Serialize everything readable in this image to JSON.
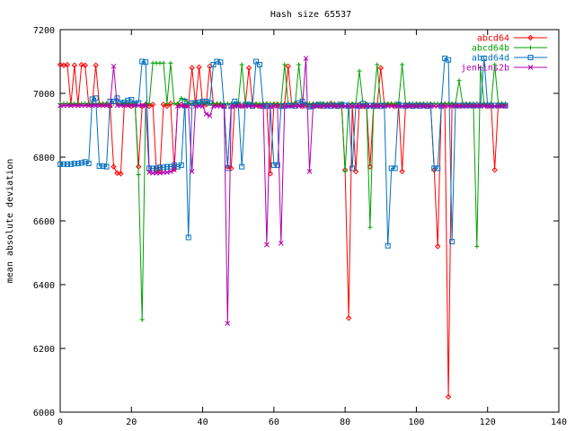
{
  "chart_data": {
    "type": "line",
    "title": "Hash size 65537",
    "xlabel": "",
    "ylabel": "mean absolute deviation",
    "xlim": [
      0,
      140
    ],
    "ylim": [
      6000,
      7200
    ],
    "xticks": [
      0,
      20,
      40,
      60,
      80,
      100,
      120,
      140
    ],
    "yticks": [
      6000,
      6200,
      6400,
      6600,
      6800,
      7000,
      7200
    ],
    "grid": false,
    "legend_position": "top-right",
    "series": [
      {
        "name": "abcd64",
        "color": "#ff0000",
        "marker": "diamond",
        "x": [
          0,
          1,
          2,
          3,
          4,
          5,
          6,
          7,
          8,
          9,
          10,
          11,
          12,
          13,
          14,
          15,
          16,
          17,
          18,
          19,
          20,
          21,
          22,
          23,
          24,
          25,
          26,
          27,
          28,
          29,
          30,
          31,
          32,
          33,
          34,
          35,
          36,
          37,
          38,
          39,
          40,
          41,
          42,
          43,
          44,
          45,
          46,
          47,
          48,
          49,
          50,
          51,
          52,
          53,
          54,
          55,
          56,
          57,
          58,
          59,
          60,
          61,
          62,
          63,
          64,
          65,
          66,
          67,
          68,
          69,
          70,
          71,
          72,
          73,
          74,
          75,
          76,
          77,
          78,
          79,
          80,
          81,
          82,
          83,
          84,
          85,
          86,
          87,
          88,
          89,
          90,
          91,
          92,
          93,
          94,
          95,
          96,
          97,
          98,
          99,
          100,
          101,
          102,
          103,
          104,
          105,
          106,
          107,
          108,
          109,
          110,
          111,
          112,
          113,
          114,
          115,
          116,
          117,
          118,
          119,
          120,
          121,
          122,
          123,
          124,
          125
        ],
        "values": [
          7090,
          7088,
          7090,
          6965,
          7088,
          6965,
          7090,
          7088,
          6965,
          6965,
          7088,
          6965,
          6965,
          6965,
          6960,
          6770,
          6750,
          6748,
          6965,
          6965,
          6960,
          6965,
          6770,
          6960,
          6965,
          6960,
          6965,
          6760,
          6755,
          6965,
          6960,
          6968,
          6762,
          6965,
          6965,
          6960,
          6965,
          7080,
          6965,
          7082,
          6965,
          6965,
          7085,
          6965,
          6965,
          6965,
          6960,
          6770,
          6765,
          6965,
          6965,
          6960,
          6965,
          7080,
          6965,
          6965,
          6960,
          6965,
          6965,
          6748,
          6965,
          6965,
          6962,
          6965,
          7085,
          6965,
          6968,
          6965,
          6960,
          6965,
          6962,
          6965,
          6965,
          6960,
          6965,
          6965,
          6968,
          6965,
          6960,
          6965,
          6760,
          6295,
          6965,
          6755,
          6965,
          6960,
          6965,
          6770,
          6965,
          6960,
          7080,
          6965,
          6965,
          6965,
          6960,
          6965,
          6755,
          6965,
          6965,
          6960,
          6965,
          6965,
          6965,
          6960,
          6965,
          6760,
          6520,
          6965,
          6965,
          6048,
          6965,
          6965,
          6960,
          6965,
          6965,
          6965,
          6960,
          6965,
          6965,
          6965,
          6960,
          6965,
          6760,
          6965,
          6965,
          6960
        ]
      },
      {
        "name": "abcd64b",
        "color": "#00a000",
        "marker": "plus",
        "x": [
          0,
          1,
          2,
          3,
          4,
          5,
          6,
          7,
          8,
          9,
          10,
          11,
          12,
          13,
          14,
          15,
          16,
          17,
          18,
          19,
          20,
          21,
          22,
          23,
          24,
          25,
          26,
          27,
          28,
          29,
          30,
          31,
          32,
          33,
          34,
          35,
          36,
          37,
          38,
          39,
          40,
          41,
          42,
          43,
          44,
          45,
          46,
          47,
          48,
          49,
          50,
          51,
          52,
          53,
          54,
          55,
          56,
          57,
          58,
          59,
          60,
          61,
          62,
          63,
          64,
          65,
          66,
          67,
          68,
          69,
          70,
          71,
          72,
          73,
          74,
          75,
          76,
          77,
          78,
          79,
          80,
          81,
          82,
          83,
          84,
          85,
          86,
          87,
          88,
          89,
          90,
          91,
          92,
          93,
          94,
          95,
          96,
          97,
          98,
          99,
          100,
          101,
          102,
          103,
          104,
          105,
          106,
          107,
          108,
          109,
          110,
          111,
          112,
          113,
          114,
          115,
          116,
          117,
          118,
          119,
          120,
          121,
          122,
          123,
          124,
          125
        ],
        "values": [
          6968,
          6968,
          6968,
          6968,
          6968,
          6968,
          6968,
          6968,
          6968,
          6968,
          6968,
          6968,
          6968,
          6968,
          6968,
          6968,
          6968,
          6968,
          6968,
          6968,
          6968,
          6968,
          6745,
          6290,
          6968,
          6968,
          7095,
          7095,
          7095,
          7095,
          6968,
          7095,
          6968,
          6968,
          6985,
          6980,
          6968,
          6968,
          6968,
          6968,
          6968,
          6968,
          6968,
          6968,
          6968,
          6968,
          6968,
          6968,
          6968,
          6968,
          6968,
          7090,
          6968,
          6968,
          6968,
          6968,
          6968,
          6968,
          6968,
          6968,
          6968,
          6968,
          6968,
          7090,
          6968,
          6968,
          6968,
          7090,
          6968,
          6968,
          6968,
          6968,
          6968,
          6968,
          6968,
          6968,
          6968,
          6968,
          6968,
          6968,
          6755,
          6968,
          6968,
          6968,
          7070,
          6968,
          6968,
          6580,
          6968,
          7090,
          6968,
          6968,
          6968,
          6968,
          6968,
          6968,
          7090,
          6968,
          6968,
          6968,
          6968,
          6968,
          6968,
          6968,
          6968,
          6968,
          6968,
          6968,
          6968,
          6968,
          6968,
          6968,
          7040,
          6968,
          6968,
          6968,
          6968,
          6520,
          7080,
          6968,
          6968,
          6968,
          7090,
          6968,
          6968,
          6968
        ]
      },
      {
        "name": "abcd64d",
        "color": "#0070c0",
        "marker": "square",
        "x": [
          0,
          1,
          2,
          3,
          4,
          5,
          6,
          7,
          8,
          9,
          10,
          11,
          12,
          13,
          14,
          15,
          16,
          17,
          18,
          19,
          20,
          21,
          22,
          23,
          24,
          25,
          26,
          27,
          28,
          29,
          30,
          31,
          32,
          33,
          34,
          35,
          36,
          37,
          38,
          39,
          40,
          41,
          42,
          43,
          44,
          45,
          46,
          47,
          48,
          49,
          50,
          51,
          52,
          53,
          54,
          55,
          56,
          57,
          58,
          59,
          60,
          61,
          62,
          63,
          64,
          65,
          66,
          67,
          68,
          69,
          70,
          71,
          72,
          73,
          74,
          75,
          76,
          77,
          78,
          79,
          80,
          81,
          82,
          83,
          84,
          85,
          86,
          87,
          88,
          89,
          90,
          91,
          92,
          93,
          94,
          95,
          96,
          97,
          98,
          99,
          100,
          101,
          102,
          103,
          104,
          105,
          106,
          107,
          108,
          109,
          110,
          111,
          112,
          113,
          114,
          115,
          116,
          117,
          118,
          119,
          120,
          121,
          122,
          123,
          124,
          125
        ],
        "values": [
          6778,
          6778,
          6778,
          6778,
          6780,
          6780,
          6782,
          6785,
          6780,
          6982,
          6985,
          6772,
          6772,
          6770,
          6975,
          6975,
          6985,
          6970,
          6972,
          6978,
          6980,
          6968,
          6970,
          7100,
          7098,
          6765,
          6765,
          6765,
          6768,
          6768,
          6770,
          6770,
          6775,
          6770,
          6775,
          6975,
          6548,
          6970,
          6968,
          6972,
          6975,
          6975,
          6970,
          7090,
          7100,
          7098,
          6960,
          6765,
          6960,
          6975,
          6965,
          6770,
          6965,
          6965,
          6960,
          7100,
          7090,
          6960,
          6960,
          6960,
          6775,
          6775,
          6960,
          6960,
          6962,
          6962,
          6960,
          6970,
          6975,
          6962,
          6958,
          6960,
          6962,
          6965,
          6960,
          6962,
          6960,
          6962,
          6960,
          6965,
          6962,
          6960,
          6765,
          6962,
          6960,
          6968,
          6960,
          6962,
          6960,
          6962,
          6960,
          6962,
          6522,
          6765,
          6765,
          6965,
          6962,
          6960,
          6962,
          6960,
          6962,
          6960,
          6962,
          6960,
          6962,
          6765,
          6765,
          6960,
          7110,
          7105,
          6535,
          6962,
          6962,
          6962,
          6962,
          6962,
          6962,
          6962,
          6962,
          7110,
          6962,
          6962,
          6962,
          6962,
          6962,
          6962
        ]
      },
      {
        "name": "jenkins2b",
        "color": "#b000b0",
        "marker": "cross",
        "x": [
          0,
          1,
          2,
          3,
          4,
          5,
          6,
          7,
          8,
          9,
          10,
          11,
          12,
          13,
          14,
          15,
          16,
          17,
          18,
          19,
          20,
          21,
          22,
          23,
          24,
          25,
          26,
          27,
          28,
          29,
          30,
          31,
          32,
          33,
          34,
          35,
          36,
          37,
          38,
          39,
          40,
          41,
          42,
          43,
          44,
          45,
          46,
          47,
          48,
          49,
          50,
          51,
          52,
          53,
          54,
          55,
          56,
          57,
          58,
          59,
          60,
          61,
          62,
          63,
          64,
          65,
          66,
          67,
          68,
          69,
          70,
          71,
          72,
          73,
          74,
          75,
          76,
          77,
          78,
          79,
          80,
          81,
          82,
          83,
          84,
          85,
          86,
          87,
          88,
          89,
          90,
          91,
          92,
          93,
          94,
          95,
          96,
          97,
          98,
          99,
          100,
          101,
          102,
          103,
          104,
          105,
          106,
          107,
          108,
          109,
          110,
          111,
          112,
          113,
          114,
          115,
          116,
          117,
          118,
          119,
          120,
          121,
          122,
          123,
          124,
          125
        ],
        "values": [
          6962,
          6962,
          6962,
          6962,
          6962,
          6962,
          6962,
          6962,
          6962,
          6962,
          6962,
          6962,
          6962,
          6962,
          6962,
          7085,
          6962,
          6962,
          6962,
          6962,
          6962,
          6962,
          6962,
          6962,
          6962,
          6752,
          6750,
          6750,
          6750,
          6752,
          6752,
          6755,
          6760,
          6960,
          6960,
          6960,
          6960,
          6755,
          6960,
          6960,
          6960,
          6935,
          6930,
          6960,
          6960,
          6960,
          6960,
          6278,
          6960,
          6960,
          6960,
          6960,
          6960,
          6960,
          6960,
          6960,
          6960,
          6960,
          6525,
          6960,
          6960,
          6960,
          6530,
          6960,
          6960,
          6960,
          6960,
          6960,
          6960,
          7110,
          6755,
          6960,
          6960,
          6960,
          6960,
          6960,
          6960,
          6960,
          6960,
          6960,
          6960,
          6960,
          6960,
          6960,
          6960,
          6960,
          6960,
          6960,
          6960,
          6960,
          6960,
          6960,
          6960,
          6960,
          6960,
          6960,
          6960,
          6960,
          6960,
          6960,
          6960,
          6960,
          6960,
          6960,
          6960,
          6960,
          6960,
          6960,
          6960,
          6960,
          6960,
          6960,
          6960,
          6960,
          6960,
          6960,
          6960,
          6960,
          6960,
          6960,
          6960,
          6960,
          6960,
          6960,
          6960,
          6960
        ]
      }
    ]
  }
}
